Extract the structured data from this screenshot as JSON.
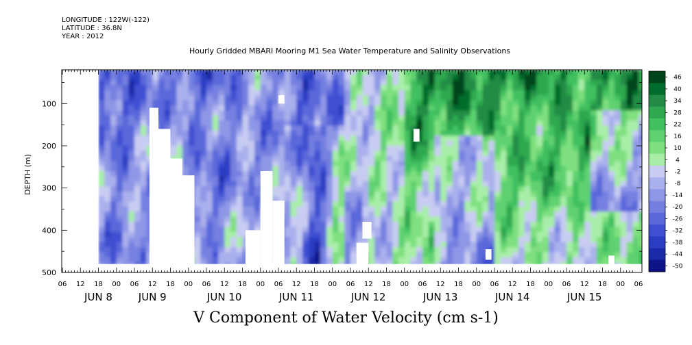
{
  "header": {
    "longitude": "LONGITUDE : 122W(-122)",
    "latitude": "LATITUDE : 36.8N",
    "year": "YEAR : 2012"
  },
  "chart_data": {
    "type": "heatmap",
    "title": "Hourly Gridded MBARI Mooring M1 Sea Water Temperature and Salinity Observations",
    "xlabel": "",
    "ylabel": "DEPTH (m)",
    "footer": "V Component of Water Velocity (cm s-1)",
    "y_range": [
      500,
      20
    ],
    "y_ticks": [
      "100",
      "200",
      "300",
      "400",
      "500"
    ],
    "x_hour_ticks": [
      "06",
      "12",
      "18",
      "00",
      "06",
      "12",
      "18",
      "00",
      "06",
      "12",
      "18",
      "00",
      "06",
      "12",
      "18",
      "00",
      "06",
      "12",
      "18",
      "00",
      "06",
      "12",
      "18",
      "00",
      "06",
      "12",
      "18",
      "00",
      "06",
      "12",
      "18",
      "00",
      "06"
    ],
    "x_day_labels": [
      "JUN  8",
      "JUN  9",
      "JUN 10",
      "JUN 11",
      "JUN 12",
      "JUN 13",
      "JUN 14",
      "JUN 15"
    ],
    "colorbar": {
      "labels": [
        "46",
        "40",
        "34",
        "28",
        "22",
        "16",
        "10",
        "4",
        "-2",
        "-8",
        "-14",
        "-20",
        "-26",
        "-32",
        "-38",
        "-44",
        "-50"
      ],
      "colors": [
        "#00441b",
        "#006d2c",
        "#238b45",
        "#2fa84f",
        "#41c060",
        "#5fd16f",
        "#7fe07f",
        "#a8eea8",
        "#c8ccf2",
        "#aab0ec",
        "#8e96e6",
        "#7480e0",
        "#5a68da",
        "#3f50d2",
        "#2a3ec2",
        "#1a2aa8",
        "#0c1488"
      ]
    },
    "field": {
      "time_range_hours": [
        18,
        200
      ],
      "time_origin": "JUN 8 00",
      "depth_range_m": [
        20,
        480
      ],
      "description_levels": "negative (blue) values dominate Jun 8-11; positive (green) values dominate upper layers Jun 12-15"
    }
  }
}
